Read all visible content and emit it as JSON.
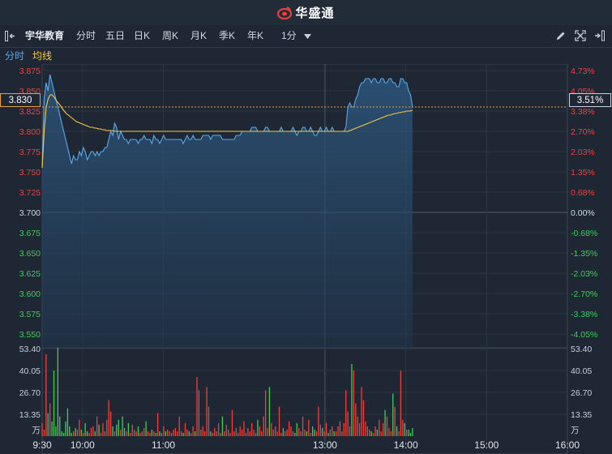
{
  "brand": {
    "name": "华盛通"
  },
  "toolbar": {
    "stock_name": "宇华教育",
    "tabs": [
      "分时",
      "五日",
      "日K",
      "周K",
      "月K",
      "季K",
      "年K"
    ],
    "active_tab": "分时",
    "interval": "1分"
  },
  "legend": {
    "intraday": "分时",
    "average": "均线"
  },
  "current": {
    "price": "3.830",
    "pct": "3.51%"
  },
  "colors": {
    "up": "#f0413c",
    "down": "#3ccf5a",
    "price_line": "#5aa9ea",
    "avg_line": "#f5c94a",
    "active": "#f5a623"
  },
  "chart_data": {
    "type": "line",
    "prev_close": 3.7,
    "price_ticks": [
      "3.875",
      "3.850",
      "3.825",
      "3.800",
      "3.775",
      "3.750",
      "3.725",
      "3.700",
      "3.675",
      "3.650",
      "3.625",
      "3.600",
      "3.575",
      "3.550"
    ],
    "pct_ticks": [
      "4.73%",
      "4.05%",
      "3.38%",
      "2.70%",
      "2.03%",
      "1.35%",
      "0.68%",
      "0.00%",
      "-0.68%",
      "-1.35%",
      "-2.03%",
      "-2.70%",
      "-3.38%",
      "-4.05%"
    ],
    "time_labels": [
      "9:30",
      "10:00",
      "11:00",
      "13:00",
      "14:00",
      "15:00",
      "16:00"
    ],
    "volume_ticks": [
      "53.40",
      "40.05",
      "26.70",
      "13.35"
    ],
    "volume_unit": "万",
    "price": [
      3.755,
      3.84,
      3.86,
      3.85,
      3.87,
      3.86,
      3.85,
      3.84,
      3.83,
      3.82,
      3.81,
      3.8,
      3.79,
      3.78,
      3.77,
      3.76,
      3.77,
      3.765,
      3.765,
      3.775,
      3.77,
      3.78,
      3.775,
      3.765,
      3.77,
      3.775,
      3.775,
      3.77,
      3.775,
      3.77,
      3.775,
      3.775,
      3.78,
      3.78,
      3.79,
      3.8,
      3.795,
      3.81,
      3.805,
      3.79,
      3.8,
      3.795,
      3.79,
      3.79,
      3.785,
      3.79,
      3.79,
      3.79,
      3.79,
      3.785,
      3.79,
      3.79,
      3.795,
      3.79,
      3.79,
      3.79,
      3.785,
      3.795,
      3.79,
      3.79,
      3.785,
      3.79,
      3.795,
      3.79,
      3.79,
      3.79,
      3.79,
      3.79,
      3.79,
      3.79,
      3.79,
      3.79,
      3.785,
      3.79,
      3.795,
      3.79,
      3.79,
      3.795,
      3.79,
      3.79,
      3.79,
      3.79,
      3.795,
      3.795,
      3.795,
      3.795,
      3.79,
      3.795,
      3.795,
      3.795,
      3.795,
      3.795,
      3.79,
      3.79,
      3.79,
      3.79,
      3.79,
      3.79,
      3.79,
      3.795,
      3.795,
      3.795,
      3.8,
      3.8,
      3.8,
      3.8,
      3.8,
      3.805,
      3.805,
      3.805,
      3.8,
      3.8,
      3.8,
      3.8,
      3.805,
      3.805,
      3.8,
      3.8,
      3.8,
      3.8,
      3.8,
      3.8,
      3.805,
      3.8,
      3.8,
      3.8,
      3.8,
      3.8,
      3.805,
      3.8,
      3.795,
      3.8,
      3.8,
      3.805,
      3.805,
      3.8,
      3.8,
      3.805,
      3.8,
      3.795,
      3.795,
      3.8,
      3.805,
      3.8,
      3.8,
      3.805,
      3.8,
      3.8,
      3.805,
      3.8,
      3.8,
      3.8,
      3.8,
      3.8,
      3.8,
      3.805,
      3.83,
      3.835,
      3.83,
      3.83,
      3.84,
      3.845,
      3.855,
      3.86,
      3.86,
      3.865,
      3.865,
      3.865,
      3.86,
      3.865,
      3.865,
      3.86,
      3.86,
      3.865,
      3.865,
      3.86,
      3.86,
      3.865,
      3.865,
      3.86,
      3.86,
      3.855,
      3.855,
      3.865,
      3.865,
      3.86,
      3.86,
      3.85,
      3.845,
      3.83
    ],
    "average": [
      3.755,
      3.8,
      3.83,
      3.84,
      3.845,
      3.845,
      3.842,
      3.838,
      3.835,
      3.832,
      3.828,
      3.825,
      3.822,
      3.82,
      3.818,
      3.816,
      3.814,
      3.812,
      3.811,
      3.81,
      3.809,
      3.808,
      3.807,
      3.806,
      3.805,
      3.805,
      3.804,
      3.804,
      3.803,
      3.803,
      3.802,
      3.802,
      3.801,
      3.801,
      3.801,
      3.801,
      3.8,
      3.8,
      3.8,
      3.8,
      3.8,
      3.8,
      3.8,
      3.8,
      3.8,
      3.8,
      3.8,
      3.8,
      3.8,
      3.8,
      3.8,
      3.8,
      3.8,
      3.8,
      3.8,
      3.8,
      3.8,
      3.8,
      3.8,
      3.8,
      3.8,
      3.8,
      3.8,
      3.8,
      3.8,
      3.8,
      3.8,
      3.8,
      3.8,
      3.8,
      3.8,
      3.8,
      3.8,
      3.8,
      3.8,
      3.8,
      3.8,
      3.8,
      3.8,
      3.8,
      3.8,
      3.8,
      3.8,
      3.8,
      3.8,
      3.8,
      3.8,
      3.8,
      3.8,
      3.8,
      3.8,
      3.8,
      3.8,
      3.8,
      3.8,
      3.8,
      3.8,
      3.8,
      3.8,
      3.8,
      3.8,
      3.8,
      3.8,
      3.8,
      3.8,
      3.8,
      3.8,
      3.8,
      3.8,
      3.8,
      3.8,
      3.8,
      3.8,
      3.8,
      3.8,
      3.8,
      3.8,
      3.8,
      3.8,
      3.8,
      3.8,
      3.8,
      3.8,
      3.8,
      3.8,
      3.8,
      3.8,
      3.8,
      3.8,
      3.8,
      3.8,
      3.8,
      3.8,
      3.8,
      3.8,
      3.8,
      3.8,
      3.8,
      3.8,
      3.8,
      3.8,
      3.8,
      3.8,
      3.8,
      3.8,
      3.8,
      3.8,
      3.8,
      3.8,
      3.8,
      3.8,
      3.8,
      3.8,
      3.801,
      3.802,
      3.803,
      3.804,
      3.805,
      3.806,
      3.807,
      3.808,
      3.809,
      3.81,
      3.811,
      3.812,
      3.813,
      3.814,
      3.815,
      3.816,
      3.817,
      3.818,
      3.819,
      3.82,
      3.82,
      3.821,
      3.822,
      3.822,
      3.823,
      3.823,
      3.824,
      3.824,
      3.825,
      3.825,
      3.825,
      3.826
    ],
    "volume": [
      8,
      4,
      50,
      14,
      20,
      9,
      40,
      6,
      54,
      12,
      3,
      2,
      9,
      17,
      6,
      2,
      3,
      5,
      4,
      10,
      4,
      2,
      8,
      3,
      2,
      5,
      6,
      3,
      12,
      7,
      2,
      8,
      3,
      10,
      22,
      15,
      6,
      3,
      7,
      10,
      4,
      12,
      5,
      3,
      8,
      2,
      7,
      4,
      3,
      6,
      2,
      3,
      5,
      9,
      3,
      2,
      4,
      3,
      2,
      14,
      3,
      2,
      6,
      3,
      4,
      3,
      2,
      4,
      5,
      3,
      12,
      3,
      2,
      8,
      4,
      3,
      2,
      6,
      3,
      36,
      28,
      4,
      6,
      3,
      30,
      18,
      3,
      2,
      5,
      3,
      8,
      2,
      12,
      3,
      7,
      4,
      2,
      16,
      3,
      5,
      2,
      6,
      4,
      9,
      2,
      5,
      3,
      8,
      4,
      2,
      10,
      6,
      3,
      12,
      28,
      5,
      30,
      8,
      4,
      6,
      3,
      18,
      2,
      5,
      3,
      4,
      9,
      6,
      3,
      2,
      8,
      5,
      3,
      12,
      4,
      3,
      10,
      2,
      6,
      4,
      3,
      18,
      7,
      5,
      3,
      8,
      2,
      4,
      6,
      3,
      3,
      6,
      9,
      3,
      8,
      28,
      15,
      6,
      44,
      40,
      20,
      12,
      8,
      30,
      22,
      9,
      6,
      4,
      3,
      2,
      6,
      4,
      10,
      3,
      8,
      16,
      12,
      5,
      3,
      26,
      18,
      6,
      3,
      40,
      10,
      8,
      4,
      4,
      2,
      5
    ]
  }
}
